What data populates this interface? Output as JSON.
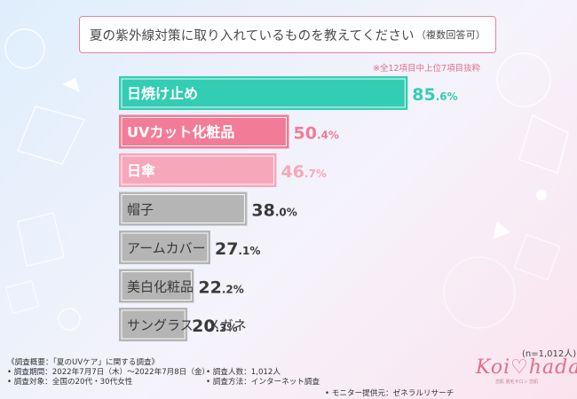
{
  "title": {
    "main": "夏の紫外線対策に取り入れているものを教えてください",
    "sub": "（複数回答可）"
  },
  "note": "※全12項目中上位7項目抜粋",
  "sample_size": "(n=1,012人)",
  "colors": {
    "teal": "#33cdb3",
    "pink_dark": "#f27c97",
    "pink_light": "#f7a7ba",
    "gray": "#b5b5b5",
    "value_dark": "#3a3a3a"
  },
  "chart_data": {
    "type": "bar",
    "orientation": "horizontal",
    "categories": [
      "日焼け止め",
      "UVカット化粧品",
      "日傘",
      "帽子",
      "アームカバー",
      "美白化粧品",
      "サングラス・メガネ"
    ],
    "values": [
      85.6,
      50.4,
      46.7,
      38.0,
      27.1,
      22.2,
      20.3
    ],
    "value_labels": [
      "85.6%",
      "50.4%",
      "46.7%",
      "38.0%",
      "27.1%",
      "22.2%",
      "20.3%"
    ],
    "bar_colors": [
      "#33cdb3",
      "#f27c97",
      "#f7a7ba",
      "#b5b5b5",
      "#b5b5b5",
      "#b5b5b5",
      "#b5b5b5"
    ],
    "value_colors": [
      "#33cdb3",
      "#f27c97",
      "#f7a7ba",
      "#3a3a3a",
      "#3a3a3a",
      "#3a3a3a",
      "#3a3a3a"
    ],
    "unit": "%",
    "xlim": [
      0,
      100
    ],
    "grid": false,
    "legend": "none"
  },
  "footer": {
    "summary": "《調査概要：「夏のUVケア」に関する調査》",
    "period": "• 調査期間：2022年7月7日（木）～2022年7月8日（金）",
    "target": "• 調査対象：全国の20代・30代女性",
    "count": "• 調査人数：1,012人",
    "method": "• 調査方法：インターネット調査",
    "provider": "• モニター提供元：ゼネラルリサーチ"
  },
  "logo": {
    "text": "Koi♡hada",
    "tagline": "恋肌 脱毛サロン 恋肌"
  }
}
